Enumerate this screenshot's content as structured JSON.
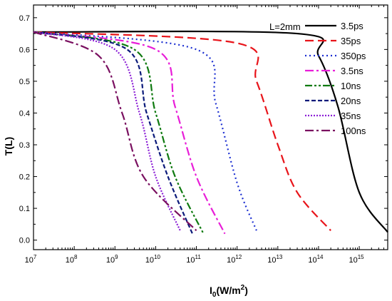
{
  "chart_data": {
    "type": "line",
    "xlabel_main": "I",
    "xlabel_sub": "0",
    "xlabel_unit": "(W/m",
    "xlabel_sup": "2",
    "xlabel_close": ")",
    "ylabel": "T(L)",
    "annotation": "L=2mm",
    "x_scale": "log",
    "xlim": [
      10000000.0,
      5000000000000000.0
    ],
    "ylim": [
      -0.03,
      0.74
    ],
    "x_ticks": [
      {
        "base": "10",
        "exp": "7"
      },
      {
        "base": "10",
        "exp": "8"
      },
      {
        "base": "10",
        "exp": "9"
      },
      {
        "base": "10",
        "exp": "10"
      },
      {
        "base": "10",
        "exp": "11"
      },
      {
        "base": "10",
        "exp": "12"
      },
      {
        "base": "10",
        "exp": "13"
      },
      {
        "base": "10",
        "exp": "14"
      },
      {
        "base": "10",
        "exp": "15"
      }
    ],
    "y_ticks": [
      "0.0",
      "0.1",
      "0.2",
      "0.3",
      "0.4",
      "0.5",
      "0.6",
      "0.7"
    ],
    "grid": false,
    "legend_position": "top-right",
    "series": [
      {
        "name": "3.5ps",
        "color": "#000000",
        "dash": "solid",
        "x": [
          10000000.0,
          30000000000000.0,
          100000000000000.0,
          300000000000000.0,
          1000000000000000.0,
          5000000000000000.0
        ],
        "y": [
          0.655,
          0.65,
          0.58,
          0.42,
          0.15,
          0.025
        ],
        "half": 300000000000000.0
      },
      {
        "name": "35ps",
        "color": "#e8141a",
        "dash": "dash",
        "x": [
          10000000.0,
          1000000000000.0,
          3000000000000.0,
          10000000000000.0,
          30000000000000.0,
          200000000000000.0
        ],
        "y": [
          0.655,
          0.62,
          0.5,
          0.3,
          0.15,
          0.03
        ],
        "half": 5000000000000.0
      },
      {
        "name": "350ps",
        "color": "#1c2fd1",
        "dash": "dot",
        "x": [
          10000000.0,
          100000000000.0,
          300000000000.0,
          1000000000000.0,
          3000000000000.0
        ],
        "y": [
          0.655,
          0.6,
          0.43,
          0.18,
          0.03
        ],
        "half": 400000000000.0
      },
      {
        "name": "3.5ns",
        "color": "#e81ed8",
        "dash": "dashdot",
        "x": [
          10000000.0,
          10000000000.0,
          30000000000.0,
          100000000000.0,
          500000000000.0
        ],
        "y": [
          0.655,
          0.6,
          0.42,
          0.2,
          0.02
        ],
        "half": 40000000000.0
      },
      {
        "name": "10ns",
        "color": "#0f7a10",
        "dash": "dashdotdot",
        "x": [
          10000000.0,
          3000000000.0,
          10000000000.0,
          30000000000.0,
          150000000000.0
        ],
        "y": [
          0.655,
          0.6,
          0.4,
          0.2,
          0.02
        ],
        "half": 12000000000.0
      },
      {
        "name": "20ns",
        "color": "#0b1a7a",
        "dash": "shortdash",
        "x": [
          10000000.0,
          2000000000.0,
          6000000000.0,
          20000000000.0,
          80000000000.0
        ],
        "y": [
          0.655,
          0.6,
          0.4,
          0.2,
          0.02
        ],
        "half": 7000000000.0
      },
      {
        "name": "35ns",
        "color": "#8c1fd6",
        "dash": "shortdot",
        "x": [
          10000000.0,
          1000000000.0,
          4000000000.0,
          10000000000.0,
          40000000000.0
        ],
        "y": [
          0.655,
          0.6,
          0.4,
          0.2,
          0.03
        ],
        "half": 4000000000.0
      },
      {
        "name": "100ns",
        "color": "#7a1060",
        "dash": "dashdot",
        "x": [
          10000000.0,
          400000000.0,
          1500000000.0,
          5000000000.0,
          100000000000.0
        ],
        "y": [
          0.655,
          0.58,
          0.4,
          0.2,
          0.03
        ],
        "half": 1500000000.0
      }
    ]
  }
}
